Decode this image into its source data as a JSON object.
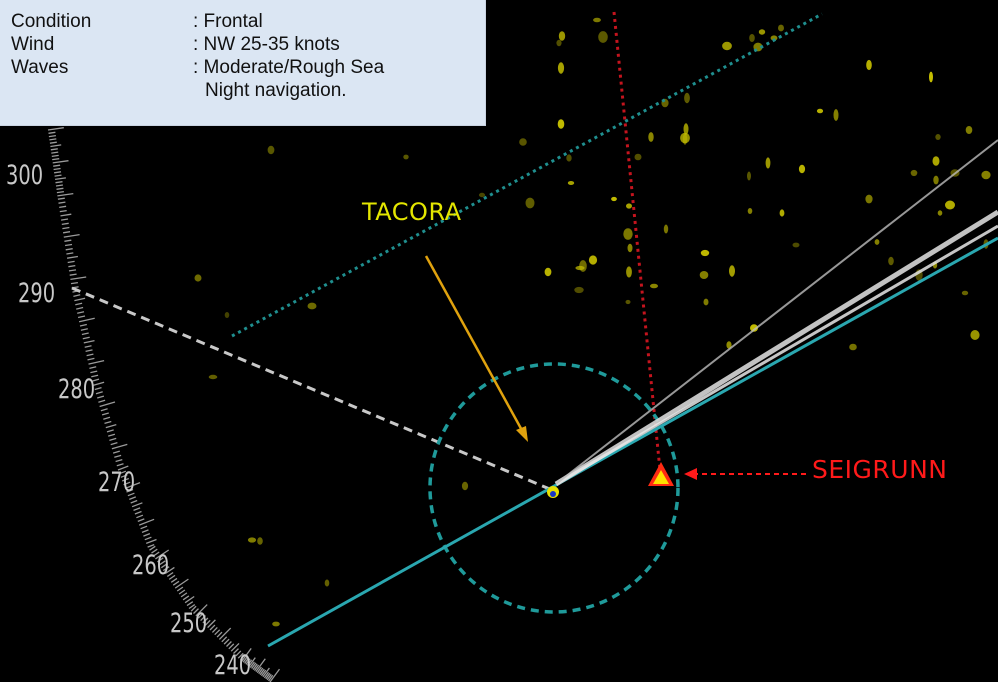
{
  "conditions": {
    "rows": [
      {
        "label": "Condition",
        "value": ": Frontal"
      },
      {
        "label": "Wind",
        "value": ": NW 25-35 knots"
      },
      {
        "label": "Waves",
        "value": ": Moderate/Rough Sea"
      }
    ],
    "extra_note": "Night navigation."
  },
  "targets": {
    "own_ship": "TACORA",
    "other_ship": "SEIGRUNN"
  },
  "bearing_scale": {
    "labels": [
      "300",
      "290",
      "280",
      "270",
      "260",
      "250",
      "240"
    ]
  },
  "colors": {
    "background": "#000000",
    "panel": "#dbe6f3",
    "tacora_label": "#e4e600",
    "seigrunn_label": "#ff1a1a",
    "heading_line": "#2aa7b0",
    "dotted_cyan": "#1f8f8f",
    "vrm_circle": "#1f9a9a",
    "ebl_dashed": "#c8c8c8",
    "echo": "#e8e000"
  }
}
